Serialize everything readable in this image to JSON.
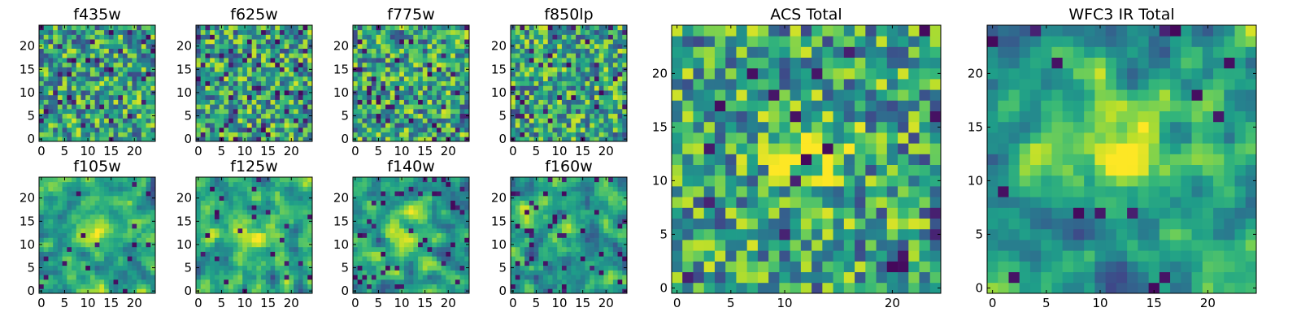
{
  "figure": {
    "colormap": "viridis"
  },
  "chart_data": [
    {
      "type": "heatmap",
      "title": "f435w",
      "xlim": [
        0,
        24
      ],
      "ylim": [
        0,
        24
      ],
      "x_ticks": [
        0,
        5,
        10,
        15,
        20
      ],
      "y_ticks": [
        0,
        5,
        10,
        15,
        20
      ],
      "seed": 11,
      "smooth": 0,
      "blob": 0,
      "dark_spots": 0.06
    },
    {
      "type": "heatmap",
      "title": "f625w",
      "xlim": [
        0,
        24
      ],
      "ylim": [
        0,
        24
      ],
      "x_ticks": [
        0,
        5,
        10,
        15,
        20
      ],
      "y_ticks": [
        0,
        5,
        10,
        15,
        20
      ],
      "seed": 23,
      "smooth": 0,
      "blob": 0,
      "dark_spots": 0.07
    },
    {
      "type": "heatmap",
      "title": "f775w",
      "xlim": [
        0,
        24
      ],
      "ylim": [
        0,
        24
      ],
      "x_ticks": [
        0,
        5,
        10,
        15,
        20
      ],
      "y_ticks": [
        0,
        5,
        10,
        15,
        20
      ],
      "seed": 37,
      "smooth": 0,
      "blob": 0,
      "dark_spots": 0.07
    },
    {
      "type": "heatmap",
      "title": "f850lp",
      "xlim": [
        0,
        24
      ],
      "ylim": [
        0,
        24
      ],
      "x_ticks": [
        0,
        5,
        10,
        15,
        20
      ],
      "y_ticks": [
        0,
        5,
        10,
        15,
        20
      ],
      "seed": 41,
      "smooth": 0,
      "blob": 0,
      "dark_spots": 0.07
    },
    {
      "type": "heatmap",
      "title": "f105w",
      "xlim": [
        0,
        24
      ],
      "ylim": [
        0,
        24
      ],
      "x_ticks": [
        0,
        5,
        10,
        15,
        20
      ],
      "y_ticks": [
        0,
        5,
        10,
        15,
        20
      ],
      "seed": 53,
      "smooth": 1,
      "blob": 0.25,
      "dark_spots": 0.02
    },
    {
      "type": "heatmap",
      "title": "f125w",
      "xlim": [
        0,
        24
      ],
      "ylim": [
        0,
        24
      ],
      "x_ticks": [
        0,
        5,
        10,
        15,
        20
      ],
      "y_ticks": [
        0,
        5,
        10,
        15,
        20
      ],
      "seed": 67,
      "smooth": 1,
      "blob": 0.2,
      "dark_spots": 0.03
    },
    {
      "type": "heatmap",
      "title": "f140w",
      "xlim": [
        0,
        24
      ],
      "ylim": [
        0,
        24
      ],
      "x_ticks": [
        0,
        5,
        10,
        15,
        20
      ],
      "y_ticks": [
        0,
        5,
        10,
        15,
        20
      ],
      "seed": 71,
      "smooth": 1,
      "blob": 0.15,
      "dark_spots": 0.06
    },
    {
      "type": "heatmap",
      "title": "f160w",
      "xlim": [
        0,
        24
      ],
      "ylim": [
        0,
        24
      ],
      "x_ticks": [
        0,
        5,
        10,
        15,
        20
      ],
      "y_ticks": [
        0,
        5,
        10,
        15,
        20
      ],
      "seed": 83,
      "smooth": 1,
      "blob": 0.2,
      "dark_spots": 0.06
    },
    {
      "type": "heatmap",
      "title": "ACS Total",
      "xlim": [
        0,
        24
      ],
      "ylim": [
        0,
        24
      ],
      "x_ticks": [
        0,
        5,
        10,
        20
      ],
      "y_ticks": [
        0,
        5,
        10,
        15,
        20
      ],
      "seed": 97,
      "smooth": 0,
      "blob": 0.35,
      "dark_spots": 0.035
    },
    {
      "type": "heatmap",
      "title": "WFC3 IR Total",
      "xlim": [
        0,
        24
      ],
      "ylim": [
        0,
        24
      ],
      "x_ticks": [
        0,
        5,
        10,
        15,
        20
      ],
      "y_ticks": [
        0,
        5,
        10,
        15,
        20
      ],
      "seed": 109,
      "smooth": 1,
      "blob": 0.55,
      "dark_spots": 0.02
    }
  ]
}
